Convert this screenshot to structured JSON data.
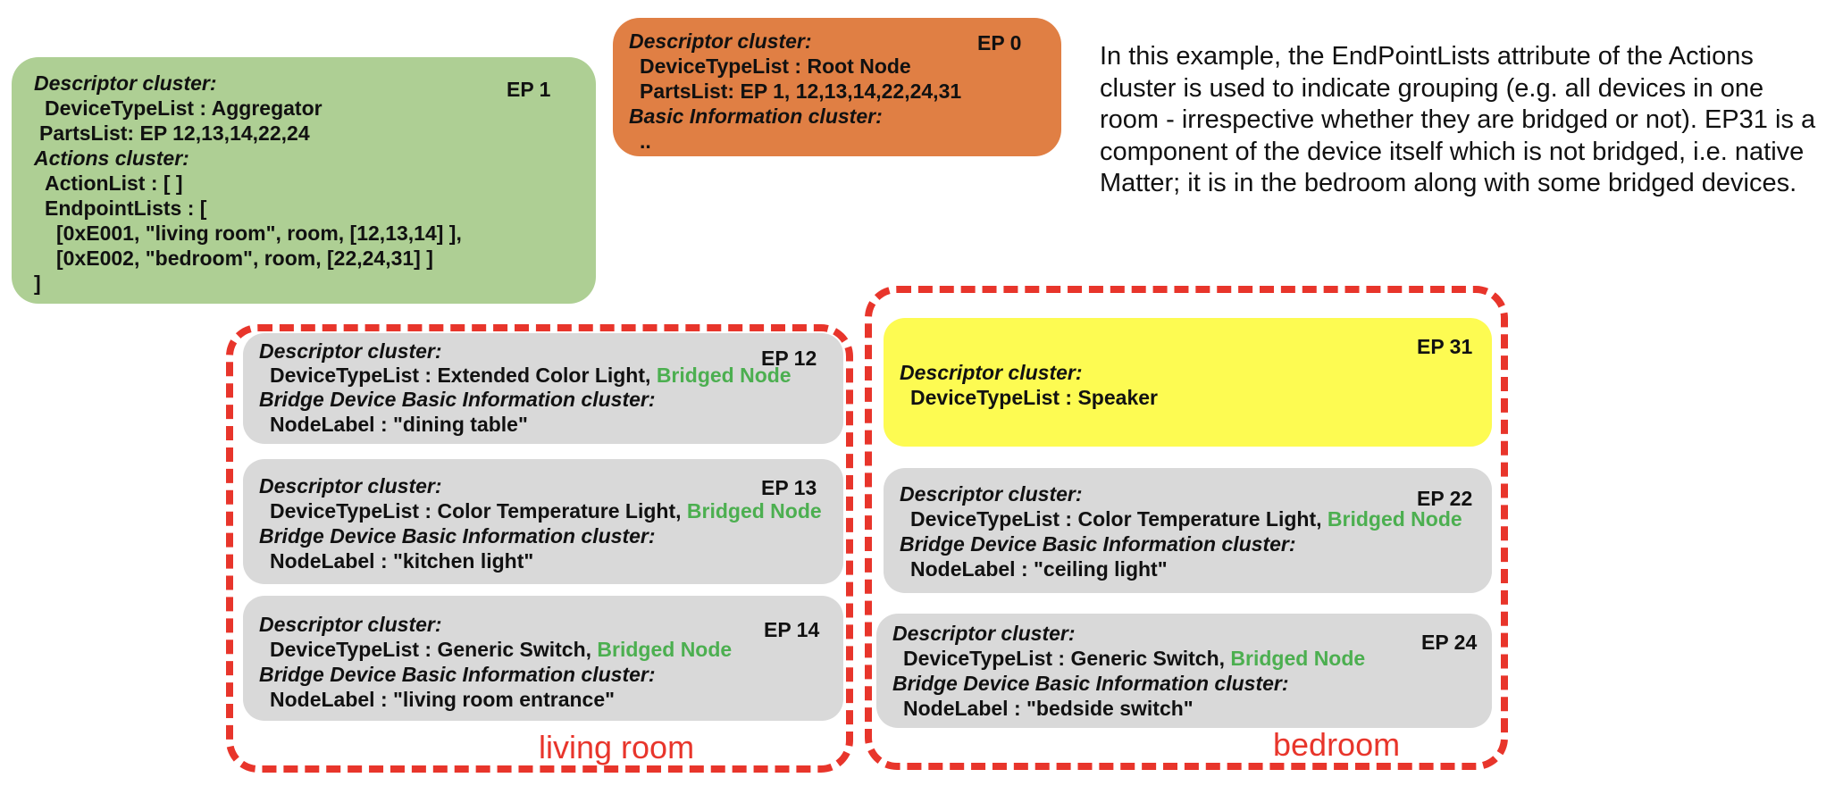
{
  "ep0": {
    "ep": "EP 0",
    "c1": "Descriptor cluster:",
    "l1": "DeviceTypeList : Root Node",
    "l2": "PartsList: EP 1, 12,13,14,22,24,31",
    "c2": "Basic Information cluster:",
    "l3": ".."
  },
  "ep1": {
    "ep": "EP 1",
    "c1": "Descriptor cluster:",
    "l1": "DeviceTypeList : Aggregator",
    "l2": "PartsList: EP 12,13,14,22,24",
    "c2": "Actions cluster:",
    "l3": "ActionList : [ ]",
    "l4": "EndpointLists : [",
    "l5": "[0xE001, \"living room\", room, [12,13,14] ],",
    "l6": "[0xE002, \"bedroom\", room, [22,24,31] ]",
    "l7": "]"
  },
  "note": "In this example, the EndPointLists attribute of the Actions cluster is used to indicate grouping (e.g. all devices in one room - irrespective whether they are bridged or not). EP31 is a component of the device itself which is not bridged, i.e. native Matter; it is in the bedroom along with some bridged devices.",
  "living_room": {
    "label": "living room",
    "ep12": {
      "ep": "EP 12",
      "c1": "Descriptor cluster:",
      "dtl": "DeviceTypeList : Extended Color Light,",
      "bridged": "Bridged Node",
      "c2": "Bridge Device Basic Information cluster:",
      "nl": "NodeLabel : \"dining table\""
    },
    "ep13": {
      "ep": "EP 13",
      "c1": "Descriptor cluster:",
      "dtl": "DeviceTypeList : Color Temperature Light,",
      "bridged": "Bridged Node",
      "c2": "Bridge Device Basic Information cluster:",
      "nl": "NodeLabel : \"kitchen light\""
    },
    "ep14": {
      "ep": "EP 14",
      "c1": "Descriptor cluster:",
      "dtl": "DeviceTypeList : Generic Switch,",
      "bridged": "Bridged Node",
      "c2": "Bridge Device Basic Information cluster:",
      "nl": "NodeLabel : \"living room entrance\""
    }
  },
  "bedroom": {
    "label": "bedroom",
    "ep31": {
      "ep": "EP 31",
      "c1": "Descriptor cluster:",
      "dtl": "DeviceTypeList : Speaker"
    },
    "ep22": {
      "ep": "EP 22",
      "c1": "Descriptor cluster:",
      "dtl": "DeviceTypeList : Color Temperature Light,",
      "bridged": "Bridged Node",
      "c2": "Bridge Device Basic Information cluster:",
      "nl": "NodeLabel : \"ceiling light\""
    },
    "ep24": {
      "ep": "EP 24",
      "c1": "Descriptor cluster:",
      "dtl": "DeviceTypeList : Generic Switch,",
      "bridged": "Bridged Node",
      "c2": "Bridge Device Basic Information cluster:",
      "nl": "NodeLabel : \"bedside switch\""
    }
  },
  "colors": {
    "ep0_fill": "#e07f44",
    "ep1_fill": "#aecf94",
    "bridged_fill": "#d9d9d9",
    "ep31_fill": "#fdfb52",
    "group_border": "#e8352b",
    "bridged_text": "#4caf50"
  }
}
